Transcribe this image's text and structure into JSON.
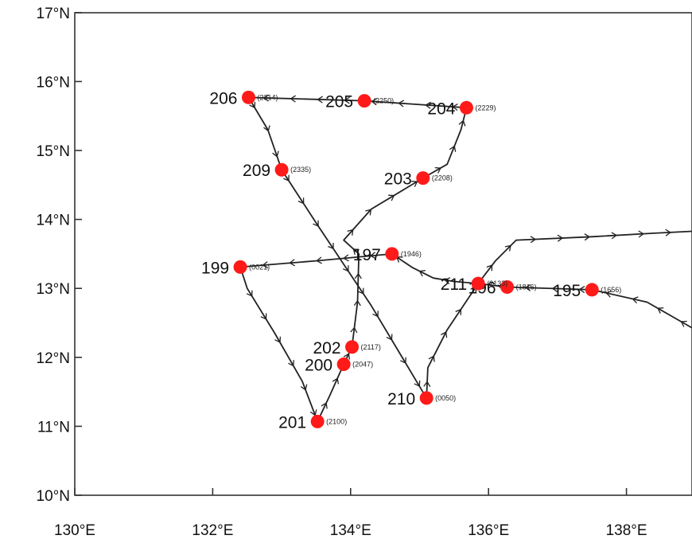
{
  "map": {
    "lon_range": [
      130,
      139
    ],
    "lat_range": [
      10,
      17
    ],
    "x_ticks": [
      {
        "value": 130,
        "label": "130°E"
      },
      {
        "value": 132,
        "label": "132°E"
      },
      {
        "value": 134,
        "label": "134°E"
      },
      {
        "value": 136,
        "label": "136°E"
      },
      {
        "value": 138,
        "label": "138°E"
      }
    ],
    "y_ticks": [
      {
        "value": 10,
        "label": "10°N"
      },
      {
        "value": 11,
        "label": "11°N"
      },
      {
        "value": 12,
        "label": "12°N"
      },
      {
        "value": 13,
        "label": "13°N"
      },
      {
        "value": 14,
        "label": "14°N"
      },
      {
        "value": 15,
        "label": "15°N"
      },
      {
        "value": 16,
        "label": "16°N"
      },
      {
        "value": 17,
        "label": "17°N"
      }
    ],
    "stations": [
      {
        "id": "195",
        "time": "(1656)",
        "lon": 137.5,
        "lat": 12.98
      },
      {
        "id": "196",
        "time": "(1816)",
        "lon": 136.27,
        "lat": 13.02
      },
      {
        "id": "197",
        "time": "(1946)",
        "lon": 134.6,
        "lat": 13.5
      },
      {
        "id": "199",
        "time": "(0021)",
        "lon": 132.4,
        "lat": 13.31
      },
      {
        "id": "200",
        "time": "(2047)",
        "lon": 133.9,
        "lat": 11.9
      },
      {
        "id": "201",
        "time": "(2100)",
        "lon": 133.52,
        "lat": 11.07
      },
      {
        "id": "202",
        "time": "(2117)",
        "lon": 134.02,
        "lat": 12.15
      },
      {
        "id": "203",
        "time": "(2208)",
        "lon": 135.05,
        "lat": 14.6
      },
      {
        "id": "204",
        "time": "(2229)",
        "lon": 135.68,
        "lat": 15.62
      },
      {
        "id": "205",
        "time": "(2250)",
        "lon": 134.2,
        "lat": 15.72
      },
      {
        "id": "206",
        "time": "(2314)",
        "lon": 132.52,
        "lat": 15.77
      },
      {
        "id": "209",
        "time": "(2335)",
        "lon": 133.0,
        "lat": 14.72
      },
      {
        "id": "210",
        "time": "(0050)",
        "lon": 135.1,
        "lat": 11.41
      },
      {
        "id": "211",
        "time": "(2133)",
        "lon": 135.85,
        "lat": 13.07
      }
    ],
    "track_main": [
      [
        139.0,
        12.4
      ],
      [
        138.3,
        12.8
      ],
      [
        137.5,
        12.98
      ],
      [
        136.27,
        13.02
      ],
      [
        135.85,
        13.07
      ],
      [
        135.5,
        13.1
      ],
      [
        135.2,
        13.15
      ],
      [
        134.9,
        13.3
      ],
      [
        134.6,
        13.5
      ],
      [
        133.5,
        13.4
      ],
      [
        132.4,
        13.31
      ],
      [
        132.5,
        13.0
      ],
      [
        132.9,
        12.35
      ],
      [
        133.3,
        11.65
      ],
      [
        133.52,
        11.07
      ],
      [
        133.7,
        11.45
      ],
      [
        133.9,
        11.9
      ],
      [
        134.02,
        12.15
      ],
      [
        134.1,
        12.8
      ],
      [
        134.12,
        13.5
      ],
      [
        133.9,
        13.7
      ],
      [
        134.3,
        14.15
      ],
      [
        135.05,
        14.6
      ],
      [
        135.4,
        14.8
      ],
      [
        135.6,
        15.3
      ],
      [
        135.68,
        15.62
      ],
      [
        134.2,
        15.72
      ],
      [
        132.52,
        15.77
      ],
      [
        132.8,
        15.3
      ],
      [
        133.0,
        14.72
      ],
      [
        133.5,
        13.95
      ],
      [
        134.3,
        12.75
      ],
      [
        135.1,
        11.41
      ]
    ],
    "track_east": [
      [
        135.1,
        11.41
      ],
      [
        135.12,
        11.85
      ],
      [
        135.4,
        12.4
      ],
      [
        135.85,
        13.07
      ],
      [
        136.1,
        13.4
      ],
      [
        136.4,
        13.7
      ],
      [
        137.5,
        13.75
      ],
      [
        138.4,
        13.8
      ],
      [
        139.0,
        13.83
      ]
    ],
    "colors": {
      "station": "#ff1a1a",
      "track": "#222222",
      "frame": "#333333"
    }
  }
}
